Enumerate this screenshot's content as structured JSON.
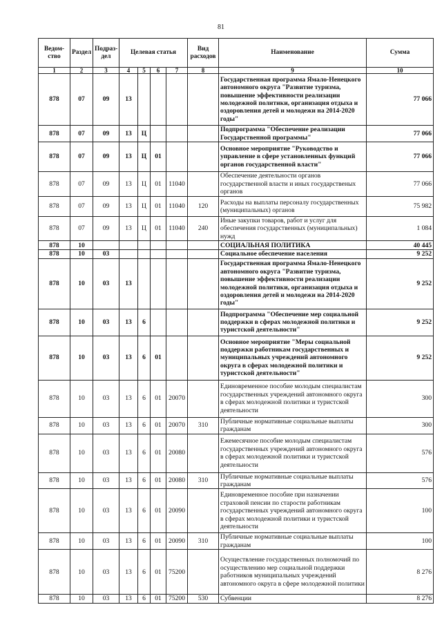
{
  "page_number": "81",
  "headers": {
    "vedomstvo": "Ведом-ство",
    "razdel": "Раздел",
    "podrazdel": "Подраз-дел",
    "celevaya": "Целевая статья",
    "vid": "Вид расходов",
    "name": "Наименование",
    "summa": "Сумма"
  },
  "column_numbers": [
    "1",
    "2",
    "3",
    "4",
    "5",
    "6",
    "7",
    "8",
    "9",
    "10"
  ],
  "rows": [
    {
      "c": [
        "878",
        "07",
        "09",
        "13",
        "",
        "",
        "",
        ""
      ],
      "name": "Государственная программа Ямало-Ненецкого автономного округа \"Развитие туризма, повышение эффективности реализации молодежной политики, организация отдыха и оздоровления детей и молодежи на 2014-2020 годы\"",
      "sum": "77 066",
      "bold": true
    },
    {
      "c": [
        "878",
        "07",
        "09",
        "13",
        "Ц",
        "",
        "",
        ""
      ],
      "name": "Подпрограмма \"Обеспечение реализации Государственной программы\"",
      "sum": "77 066",
      "bold": true
    },
    {
      "c": [
        "878",
        "07",
        "09",
        "13",
        "Ц",
        "01",
        "",
        ""
      ],
      "name": "Основное мероприятие \"Руководство и управление в сфере установленных функций органов государственной власти\"",
      "sum": "77 066",
      "bold": true
    },
    {
      "c": [
        "878",
        "07",
        "09",
        "13",
        "Ц",
        "01",
        "11040",
        ""
      ],
      "name": "Обеспечение деятельности органов государственной власти и иных государственых органов",
      "sum": "77 066",
      "bold": false
    },
    {
      "c": [
        "878",
        "07",
        "09",
        "13",
        "Ц",
        "01",
        "11040",
        "120"
      ],
      "name": "Расходы на выплаты персоналу государственных (муниципальных) органов",
      "sum": "75 982",
      "bold": false
    },
    {
      "c": [
        "878",
        "07",
        "09",
        "13",
        "Ц",
        "01",
        "11040",
        "240"
      ],
      "name": "Иные закупки товаров, работ и услуг для обеспечения государственных (муниципальных) нужд",
      "sum": "1 084",
      "bold": false
    },
    {
      "c": [
        "878",
        "10",
        "",
        "",
        "",
        "",
        "",
        ""
      ],
      "name": "СОЦИАЛЬНАЯ ПОЛИТИКА",
      "sum": "40 445",
      "bold": true
    },
    {
      "c": [
        "878",
        "10",
        "03",
        "",
        "",
        "",
        "",
        ""
      ],
      "name": "Социальное обеспечение населения",
      "sum": "9 252",
      "bold": true
    },
    {
      "c": [
        "878",
        "10",
        "03",
        "13",
        "",
        "",
        "",
        ""
      ],
      "name": "Государственная программа Ямало-Ненецкого автономного округа \"Развитие туризма, повышение эффективности реализации молодежной политики, организация отдыха и оздоровления детей и молодежи на 2014-2020 годы\"",
      "sum": "9 252",
      "bold": true
    },
    {
      "c": [
        "878",
        "10",
        "03",
        "13",
        "6",
        "",
        "",
        ""
      ],
      "name": "Подпрограмма \"Обеспечение мер социальной поддержки в сферах молодежной политики и туристской деятельности\"",
      "sum": "9 252",
      "bold": true
    },
    {
      "c": [
        "878",
        "10",
        "03",
        "13",
        "6",
        "01",
        "",
        ""
      ],
      "name": "Основное мероприятие \"Меры социальной поддержки работникам государственных и муниципальных учреждений автономного округа в сферах молодежной политики и туристской деятельности\"",
      "sum": "9 252",
      "bold": true
    },
    {
      "c": [
        "878",
        "10",
        "03",
        "13",
        "6",
        "01",
        "20070",
        ""
      ],
      "name": "Единовременное пособие молодым специалистам государственных учреждений автономного округа в сферах молодежной политики и туристской деятельности",
      "sum": "300",
      "bold": false
    },
    {
      "c": [
        "878",
        "10",
        "03",
        "13",
        "6",
        "01",
        "20070",
        "310"
      ],
      "name": "Публичные нормативные социальные выплаты гражданам",
      "sum": "300",
      "bold": false
    },
    {
      "c": [
        "878",
        "10",
        "03",
        "13",
        "6",
        "01",
        "20080",
        ""
      ],
      "name": "Ежемесячное пособие молодым специалистам государственных учреждений автономного округа в сферах молодежной политики и туристской деятельности",
      "sum": "576",
      "bold": false
    },
    {
      "c": [
        "878",
        "10",
        "03",
        "13",
        "6",
        "01",
        "20080",
        "310"
      ],
      "name": "Публичные нормативные социальные выплаты гражданам",
      "sum": "576",
      "bold": false
    },
    {
      "c": [
        "878",
        "10",
        "03",
        "13",
        "6",
        "01",
        "20090",
        ""
      ],
      "name": "Единовременное пособие при назначении страховой пенсии по старости работникам государственных учреждений автономного округа в сферах молодежной политики и туристской деятельности",
      "sum": "100",
      "bold": false
    },
    {
      "c": [
        "878",
        "10",
        "03",
        "13",
        "6",
        "01",
        "20090",
        "310"
      ],
      "name": "Публичные нормативные социальные выплаты гражданам",
      "sum": "100",
      "bold": false
    },
    {
      "c": [
        "878",
        "10",
        "03",
        "13",
        "6",
        "01",
        "75200",
        ""
      ],
      "name": "Осуществление государственных полномочий по осуществлению мер социальной поддержки работников муниципальных учреждений автономного округа в сфере молодежной политики",
      "sum": "8 276",
      "bold": false
    },
    {
      "c": [
        "878",
        "10",
        "03",
        "13",
        "6",
        "01",
        "75200",
        "530"
      ],
      "name": "Субвенции",
      "sum": "8 276",
      "bold": false
    }
  ]
}
